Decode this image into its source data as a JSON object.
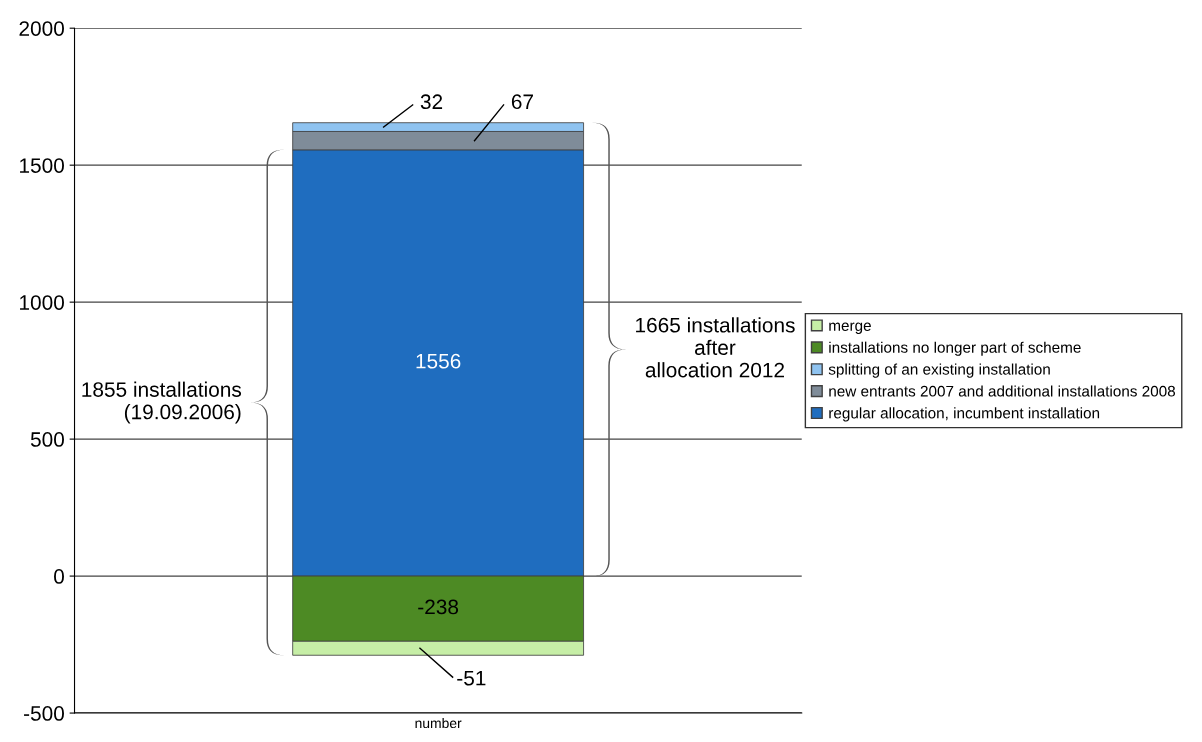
{
  "chart_data": {
    "type": "bar",
    "stacked": true,
    "categories": [
      "number"
    ],
    "series": [
      {
        "name": "regular allocation, incumbent installation",
        "color": "#1f6dbf",
        "values": [
          1556
        ]
      },
      {
        "name": "new entrants 2007 and additional installations 2008",
        "color": "#7f8c99",
        "values": [
          67
        ]
      },
      {
        "name": "splitting of an existing installation",
        "color": "#8fc3f0",
        "values": [
          32
        ]
      },
      {
        "name": "installations no longer part of scheme",
        "color": "#4d8a24",
        "values": [
          -238
        ]
      },
      {
        "name": "merge",
        "color": "#c6eea6",
        "values": [
          -51
        ]
      }
    ],
    "ylim": [
      -500,
      2000
    ],
    "yticks": [
      -500,
      0,
      500,
      1000,
      1500,
      2000
    ],
    "grid": "y",
    "legend": "right",
    "data_labels": true,
    "annotations": [
      "1855 installations\n(19.09.2006)",
      "1665 installations\nafter\nallocation 2012"
    ]
  }
}
